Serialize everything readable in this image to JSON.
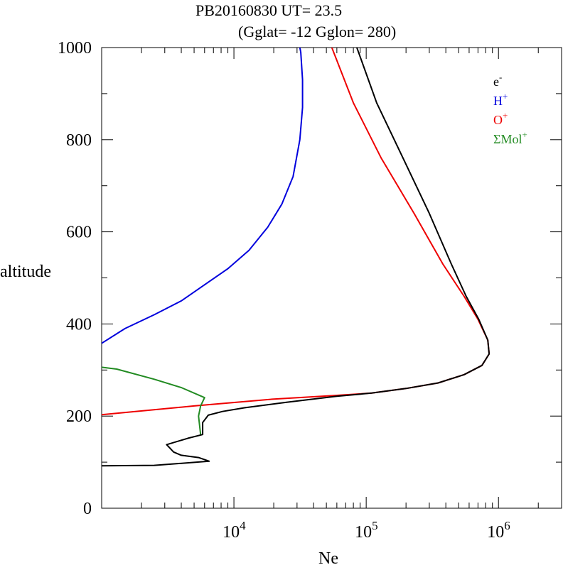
{
  "chart_data": {
    "type": "line",
    "title": "PB20160830   UT=  23.5",
    "subtitle": "(Gglat= -12   Gglon=  280)",
    "xlabel": "Ne",
    "ylabel": "altitude",
    "x_scale": "log",
    "xlim": [
      1000,
      3000000
    ],
    "ylim": [
      0,
      1000
    ],
    "x_ticks": [
      {
        "value": 10000,
        "base": "10",
        "exp": "4"
      },
      {
        "value": 100000,
        "base": "10",
        "exp": "5"
      },
      {
        "value": 1000000,
        "base": "10",
        "exp": "6"
      }
    ],
    "y_ticks": [
      {
        "value": 0,
        "label": "0"
      },
      {
        "value": 200,
        "label": "200"
      },
      {
        "value": 400,
        "label": "400"
      },
      {
        "value": 600,
        "label": "600"
      },
      {
        "value": 800,
        "label": "800"
      },
      {
        "value": 1000,
        "label": "1000"
      }
    ],
    "series": [
      {
        "name": "H+",
        "legend_base": "H",
        "legend_sup": "+",
        "color": "#0000dd",
        "points": [
          [
            1000,
            358
          ],
          [
            1500,
            390
          ],
          [
            2500,
            420
          ],
          [
            4000,
            450
          ],
          [
            6000,
            485
          ],
          [
            9000,
            520
          ],
          [
            13000,
            560
          ],
          [
            18000,
            610
          ],
          [
            23000,
            660
          ],
          [
            28000,
            720
          ],
          [
            31500,
            800
          ],
          [
            33000,
            870
          ],
          [
            33000,
            930
          ],
          [
            32000,
            990
          ],
          [
            31500,
            1000
          ]
        ]
      },
      {
        "name": "O+",
        "legend_base": "O",
        "legend_sup": "+",
        "color": "#ee0000",
        "points": [
          [
            1000,
            203
          ],
          [
            5000,
            222
          ],
          [
            20000,
            237
          ],
          [
            60000,
            245
          ],
          [
            110000,
            250
          ],
          [
            200000,
            260
          ],
          [
            350000,
            272
          ],
          [
            550000,
            290
          ],
          [
            750000,
            310
          ],
          [
            850000,
            335
          ],
          [
            830000,
            365
          ],
          [
            700000,
            410
          ],
          [
            550000,
            460
          ],
          [
            380000,
            530
          ],
          [
            230000,
            640
          ],
          [
            130000,
            760
          ],
          [
            80000,
            880
          ],
          [
            55000,
            1000
          ]
        ]
      },
      {
        "name": "ΣMol+",
        "legend_base": "ΣMol",
        "legend_sup": "+",
        "color": "#228b22",
        "points": [
          [
            1000,
            306
          ],
          [
            1300,
            302
          ],
          [
            2500,
            280
          ],
          [
            4000,
            262
          ],
          [
            6000,
            240
          ],
          [
            5600,
            222
          ],
          [
            5400,
            200
          ],
          [
            5600,
            160
          ]
        ]
      },
      {
        "name": "e-",
        "legend_base": "e",
        "legend_sup": "-",
        "color": "#000000",
        "points": [
          [
            1000,
            92
          ],
          [
            2500,
            93
          ],
          [
            6500,
            102
          ],
          [
            5400,
            110
          ],
          [
            4000,
            115
          ],
          [
            3500,
            122
          ],
          [
            3100,
            138
          ],
          [
            4500,
            152
          ],
          [
            5800,
            160
          ],
          [
            5800,
            186
          ],
          [
            6400,
            202
          ],
          [
            8200,
            210
          ],
          [
            12000,
            218
          ],
          [
            25000,
            230
          ],
          [
            60000,
            243
          ],
          [
            110000,
            250
          ],
          [
            200000,
            260
          ],
          [
            350000,
            272
          ],
          [
            550000,
            290
          ],
          [
            750000,
            310
          ],
          [
            850000,
            335
          ],
          [
            830000,
            365
          ],
          [
            710000,
            410
          ],
          [
            570000,
            460
          ],
          [
            440000,
            530
          ],
          [
            300000,
            640
          ],
          [
            190000,
            760
          ],
          [
            120000,
            880
          ],
          [
            85000,
            1000
          ]
        ]
      }
    ]
  }
}
